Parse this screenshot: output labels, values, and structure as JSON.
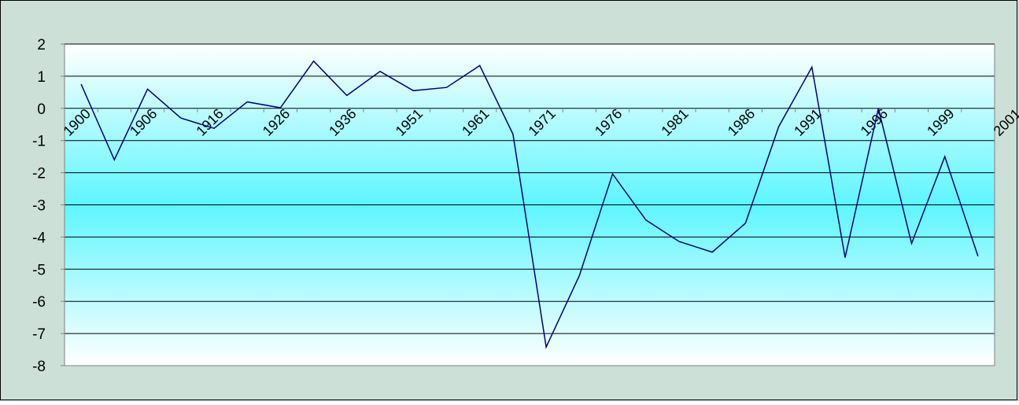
{
  "colors": {
    "chart_area_bg": "#cde0d8",
    "chart_area_border": "#000000",
    "plot_gradient_edge": "#ffffff",
    "plot_gradient_center": "#5ef6ff",
    "gridline": "#000000",
    "axis": "#808080",
    "series_line": "#000080"
  },
  "chart_data": {
    "type": "line",
    "title": "",
    "xlabel": "",
    "ylabel": "",
    "ylim": [
      -8,
      2
    ],
    "y_ticks": [
      2,
      1,
      0,
      -1,
      -2,
      -3,
      -4,
      -5,
      -6,
      -7,
      -8
    ],
    "grid": true,
    "legend": "none",
    "x_tick_labels": [
      "1900",
      "1906",
      "1916",
      "1926",
      "1936",
      "1951",
      "1961",
      "1971",
      "1976",
      "1981",
      "1986",
      "1991",
      "1996",
      "1999",
      "2001"
    ],
    "values": [
      0.75,
      -1.6,
      0.6,
      -0.3,
      -0.62,
      0.2,
      0.02,
      1.47,
      0.4,
      1.15,
      0.55,
      0.65,
      1.33,
      -0.8,
      -7.42,
      -5.2,
      -2.04,
      -3.47,
      -4.14,
      -4.47,
      -3.57,
      -0.57,
      1.28,
      -4.64,
      0.0,
      -4.2,
      -1.5,
      -4.6
    ]
  }
}
